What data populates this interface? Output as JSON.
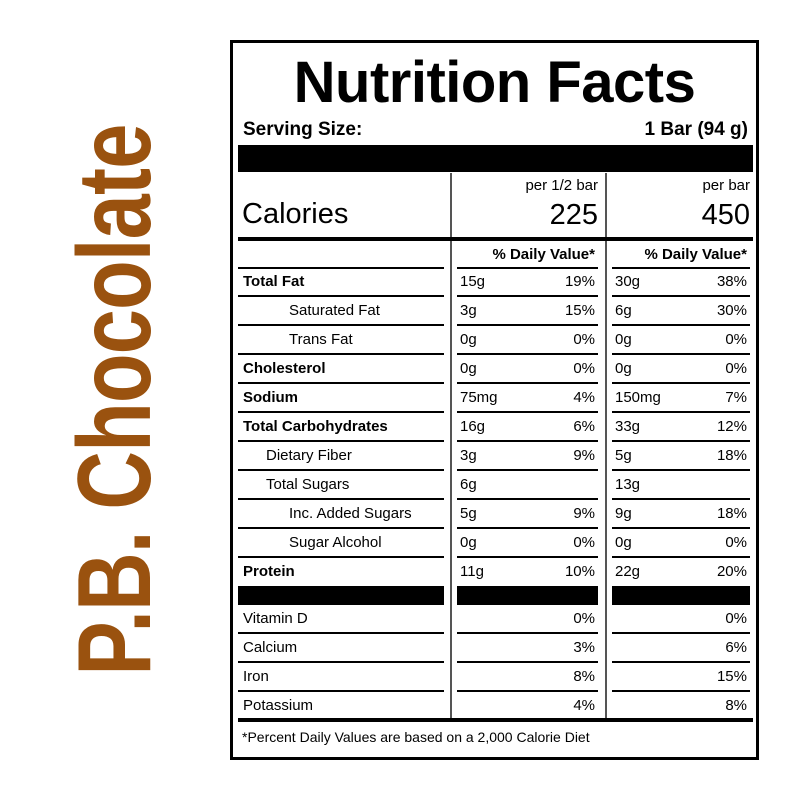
{
  "brand": {
    "text": "P.B. Chocolate",
    "color": "#9a520f"
  },
  "title": "Nutrition Facts",
  "serving": {
    "label": "Serving Size:",
    "value": "1 Bar (94 g)"
  },
  "calories": {
    "label": "Calories",
    "columns": [
      {
        "unit": "per 1/2 bar",
        "value": "225"
      },
      {
        "unit": "per bar",
        "value": "450"
      }
    ]
  },
  "dv_header": "% Daily Value*",
  "nutrients": [
    {
      "label": "Total Fat",
      "bold": true,
      "indent": 0,
      "half": {
        "amount": "15g",
        "dv": "19%"
      },
      "full": {
        "amount": "30g",
        "dv": "38%"
      }
    },
    {
      "label": "Saturated Fat",
      "bold": false,
      "indent": 2,
      "half": {
        "amount": "3g",
        "dv": "15%"
      },
      "full": {
        "amount": "6g",
        "dv": "30%"
      }
    },
    {
      "label": "Trans Fat",
      "bold": false,
      "indent": 2,
      "half": {
        "amount": "0g",
        "dv": "0%"
      },
      "full": {
        "amount": "0g",
        "dv": "0%"
      }
    },
    {
      "label": "Cholesterol",
      "bold": true,
      "indent": 0,
      "half": {
        "amount": "0g",
        "dv": "0%"
      },
      "full": {
        "amount": "0g",
        "dv": "0%"
      }
    },
    {
      "label": "Sodium",
      "bold": true,
      "indent": 0,
      "half": {
        "amount": "75mg",
        "dv": "4%"
      },
      "full": {
        "amount": "150mg",
        "dv": "7%"
      }
    },
    {
      "label": "Total Carbohydrates",
      "bold": true,
      "indent": 0,
      "half": {
        "amount": "16g",
        "dv": "6%"
      },
      "full": {
        "amount": "33g",
        "dv": "12%"
      }
    },
    {
      "label": "Dietary Fiber",
      "bold": false,
      "indent": 1,
      "half": {
        "amount": "3g",
        "dv": "9%"
      },
      "full": {
        "amount": "5g",
        "dv": "18%"
      }
    },
    {
      "label": "Total Sugars",
      "bold": false,
      "indent": 1,
      "half": {
        "amount": "6g",
        "dv": ""
      },
      "full": {
        "amount": "13g",
        "dv": ""
      }
    },
    {
      "label": "Inc. Added Sugars",
      "bold": false,
      "indent": 2,
      "half": {
        "amount": "5g",
        "dv": "9%"
      },
      "full": {
        "amount": "9g",
        "dv": "18%"
      }
    },
    {
      "label": "Sugar Alcohol",
      "bold": false,
      "indent": 2,
      "half": {
        "amount": "0g",
        "dv": "0%"
      },
      "full": {
        "amount": "0g",
        "dv": "0%"
      }
    },
    {
      "label": "Protein",
      "bold": true,
      "indent": 0,
      "half": {
        "amount": "11g",
        "dv": "10%"
      },
      "full": {
        "amount": "22g",
        "dv": "20%"
      }
    }
  ],
  "vitamins": [
    {
      "label": "Vitamin D",
      "half": "0%",
      "full": "0%"
    },
    {
      "label": "Calcium",
      "half": "3%",
      "full": "6%"
    },
    {
      "label": "Iron",
      "half": "8%",
      "full": "15%"
    },
    {
      "label": "Potassium",
      "half": "4%",
      "full": "8%"
    }
  ],
  "footer": "*Percent Daily Values are based on a 2,000 Calorie Diet"
}
